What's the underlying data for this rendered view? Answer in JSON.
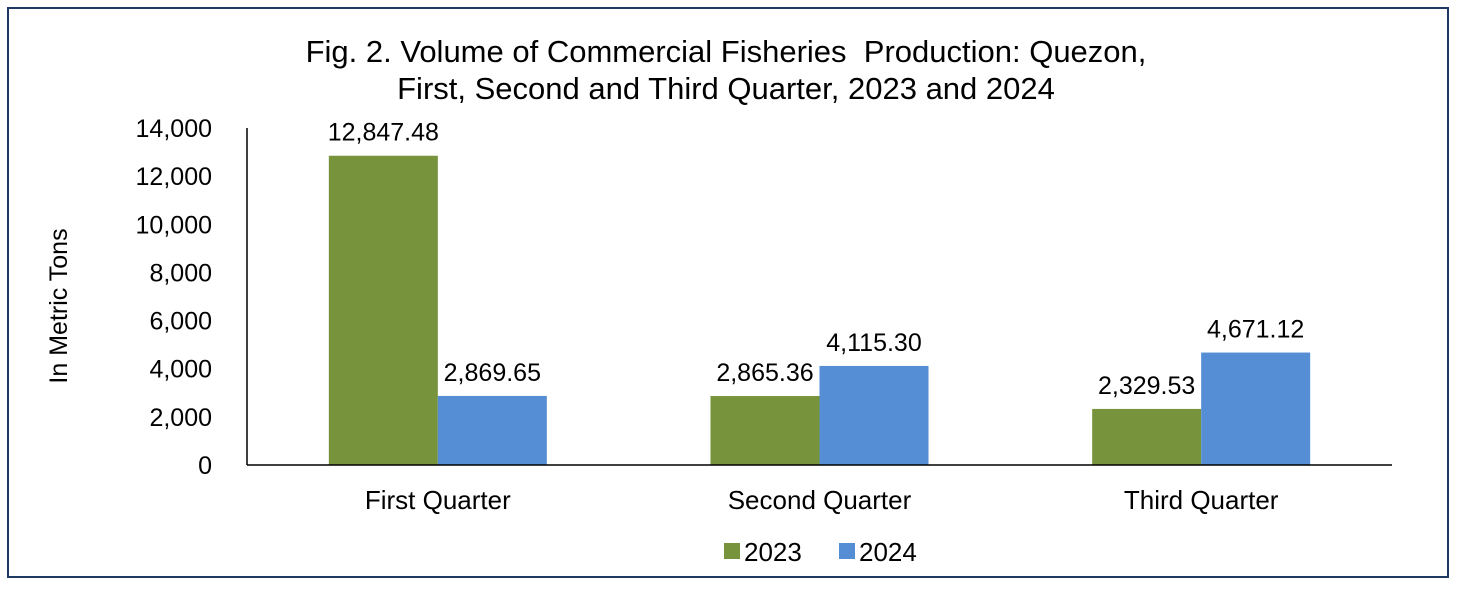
{
  "chart_data": {
    "type": "bar",
    "title_lines": [
      "Fig. 2. Volume of Commercial Fisheries  Production: Quezon,",
      "First, Second and Third Quarter, 2023 and 2024"
    ],
    "ylabel": "In Metric Tons",
    "xlabel": "",
    "categories": [
      "First Quarter",
      "Second Quarter",
      "Third Quarter"
    ],
    "series": [
      {
        "name": "2023",
        "color": "#77933c",
        "values": [
          12847.48,
          2865.36,
          2329.53
        ],
        "labels": [
          "12,847.48",
          "2,865.36",
          "2,329.53"
        ]
      },
      {
        "name": "2024",
        "color": "#558ed5",
        "values": [
          2869.65,
          4115.3,
          4671.12
        ],
        "labels": [
          "2,869.65",
          "4,115.30",
          "4,671.12"
        ]
      }
    ],
    "ylim": [
      0,
      14000
    ],
    "yticks": [
      0,
      2000,
      4000,
      6000,
      8000,
      10000,
      12000,
      14000
    ],
    "ytick_labels": [
      "0",
      "2,000",
      "4,000",
      "6,000",
      "8,000",
      "10,000",
      "12,000",
      "14,000"
    ],
    "grid": false,
    "legend": "bottom-center"
  }
}
